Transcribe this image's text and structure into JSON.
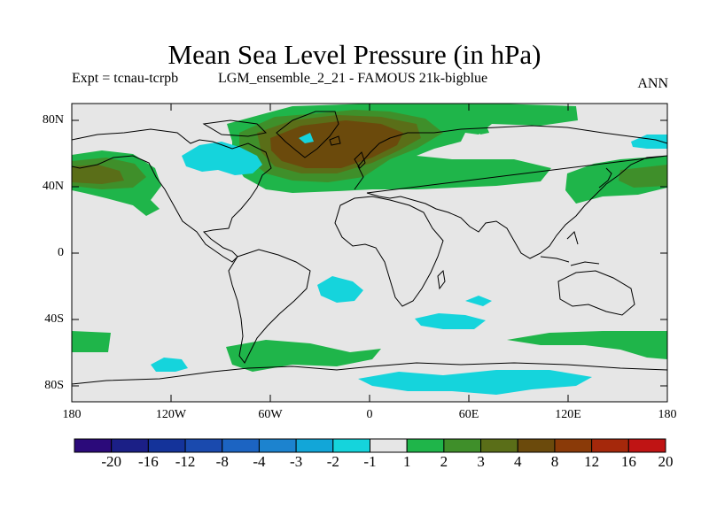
{
  "header": {
    "title": "Mean Sea Level Pressure (in hPa)",
    "experiment": "Expt = tcnau-tcrpb",
    "run": "LGM_ensemble_2_21 - FAMOUS 21k-bigblue",
    "period": "ANN"
  },
  "axes": {
    "lat_labels": [
      "80N",
      "40N",
      "0",
      "40S",
      "80S"
    ],
    "lon_labels": [
      "180",
      "120W",
      "60W",
      "0",
      "60E",
      "120E",
      "180"
    ]
  },
  "colorbar": {
    "labels": [
      "-20",
      "-16",
      "-12",
      "-8",
      "-4",
      "-3",
      "-2",
      "-1",
      "1",
      "2",
      "3",
      "4",
      "8",
      "12",
      "16",
      "20"
    ],
    "colors": [
      "#2b0a7a",
      "#1b1f86",
      "#14339a",
      "#1a4aae",
      "#1c64c2",
      "#1c83cf",
      "#12a6d8",
      "#15d4dc",
      "#e6e6e6",
      "#1fb54a",
      "#3f8f2a",
      "#5a6e18",
      "#6b4a0c",
      "#8a3a08",
      "#a5280b",
      "#c01414"
    ]
  },
  "map": {
    "colors": {
      "background": "#e6e6e6",
      "neg_1_2": "#15d4dc",
      "pos_1_2": "#1fb54a",
      "pos_2_3": "#3f8f2a",
      "pos_3_4": "#5a6e18",
      "pos_4_8": "#6b4a0c"
    }
  }
}
